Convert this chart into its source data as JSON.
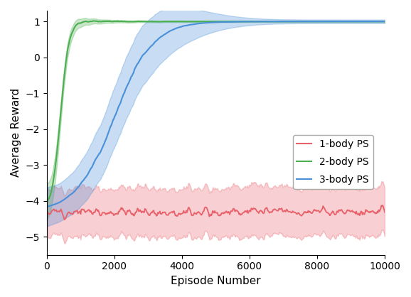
{
  "title": "",
  "xlabel": "Episode Number",
  "ylabel": "Average Reward",
  "xlim": [
    0,
    10000
  ],
  "ylim": [
    -5.5,
    1.3
  ],
  "yticks": [
    1,
    0,
    -1,
    -2,
    -3,
    -4,
    -5
  ],
  "xticks": [
    0,
    2000,
    4000,
    6000,
    8000,
    10000
  ],
  "n_episodes": 10000,
  "n_points": 500,
  "seed": 12,
  "legend_labels": [
    "1-body PS",
    "2-body PS",
    "3-body PS"
  ],
  "colors": {
    "1body": "#e8606a",
    "2body": "#4caf50",
    "3body": "#4a90d9"
  },
  "alpha_fill": 0.3,
  "figsize": [
    5.78,
    4.18
  ],
  "dpi": 100
}
